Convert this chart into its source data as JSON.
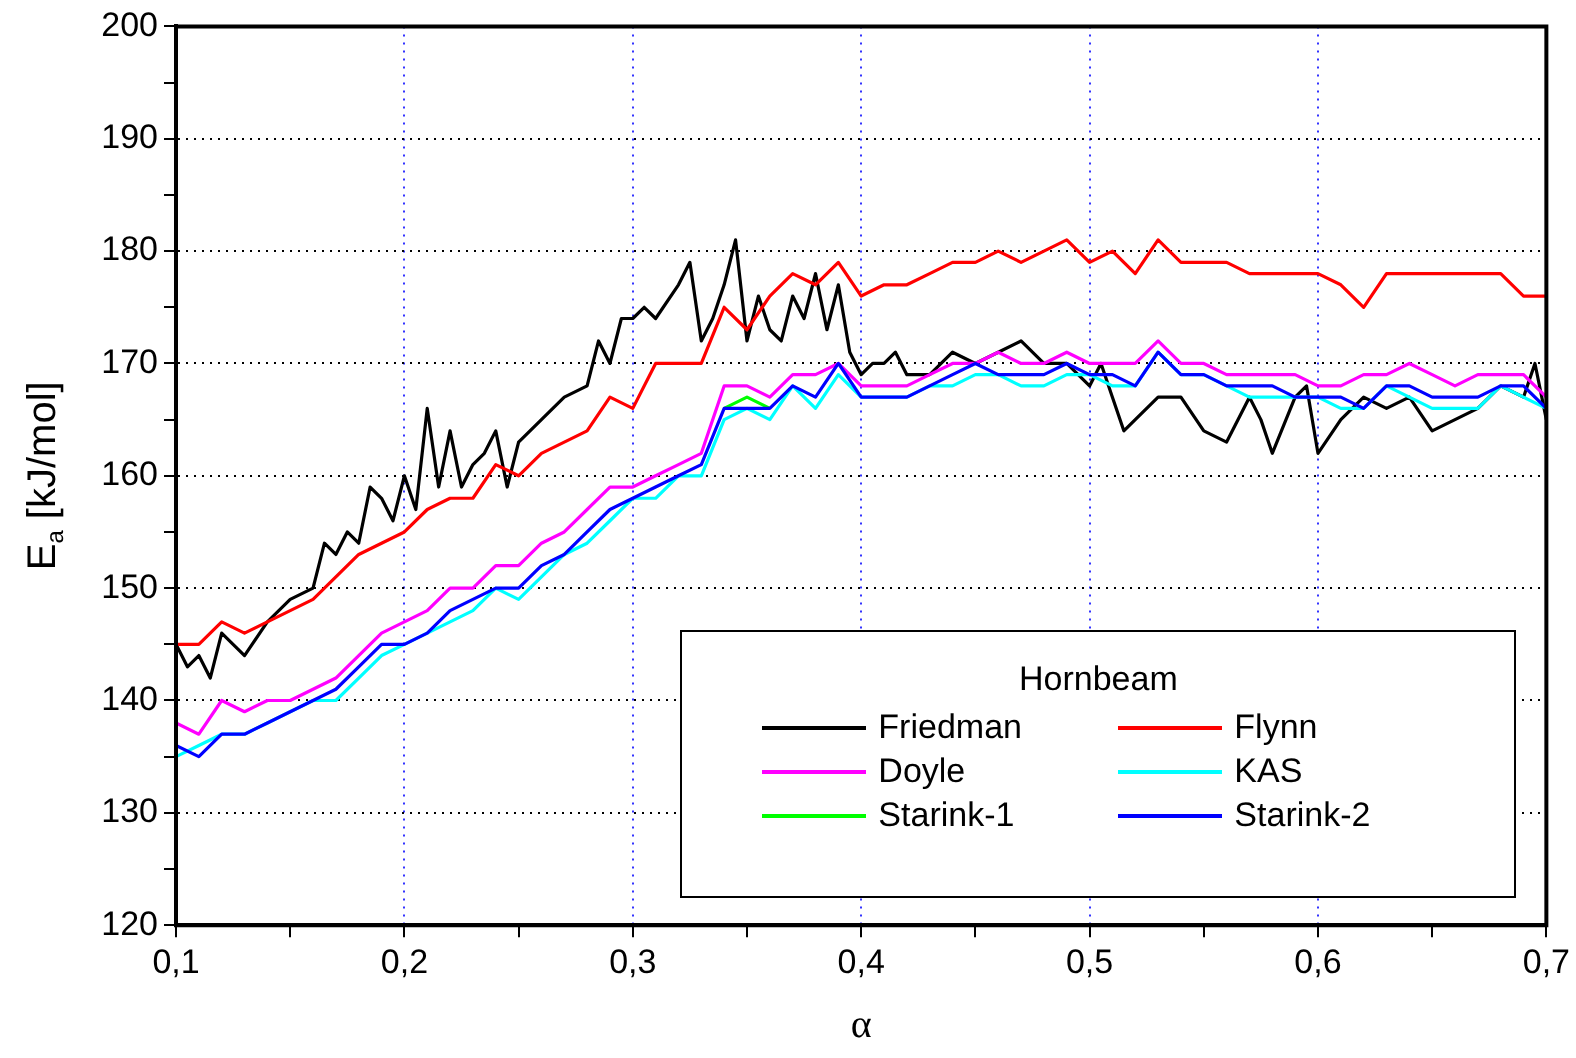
{
  "chart_data": {
    "type": "line",
    "xlabel": "α",
    "ylabel": "E$_{a}$ [kJ/mol]",
    "legend_title": "Hornbeam",
    "legend": "bottom right",
    "grid": true,
    "marker": "none",
    "line_style": "solid",
    "x": [
      0.1,
      0.11,
      0.12,
      0.13,
      0.14,
      0.15,
      0.16,
      0.17,
      0.18,
      0.19,
      0.2,
      0.21,
      0.22,
      0.23,
      0.24,
      0.25,
      0.26,
      0.27,
      0.28,
      0.29,
      0.3,
      0.31,
      0.32,
      0.33,
      0.34,
      0.35,
      0.36,
      0.37,
      0.38,
      0.39,
      0.4,
      0.41,
      0.42,
      0.43,
      0.44,
      0.45,
      0.46,
      0.47,
      0.48,
      0.49,
      0.5,
      0.51,
      0.52,
      0.53,
      0.54,
      0.55,
      0.56,
      0.57,
      0.58,
      0.59,
      0.6,
      0.61,
      0.62,
      0.63,
      0.64,
      0.65,
      0.66,
      0.67,
      0.68,
      0.69,
      0.7
    ],
    "xlim": [
      0.1,
      0.7
    ],
    "xticks": [
      {
        "value": 0.1,
        "label": "0,1"
      },
      {
        "value": 0.15,
        "label": null
      },
      {
        "value": 0.2,
        "label": "0,2"
      },
      {
        "value": 0.25,
        "label": null
      },
      {
        "value": 0.3,
        "label": "0,3"
      },
      {
        "value": 0.35,
        "label": null
      },
      {
        "value": 0.4,
        "label": "0,4"
      },
      {
        "value": 0.45,
        "label": null
      },
      {
        "value": 0.5,
        "label": "0,5"
      },
      {
        "value": 0.55,
        "label": null
      },
      {
        "value": 0.6,
        "label": "0,6"
      },
      {
        "value": 0.65,
        "label": null
      },
      {
        "value": 0.7,
        "label": "0,7"
      }
    ],
    "ylim": [
      120,
      200
    ],
    "yticks": [
      120,
      {
        "value": 125,
        "label": null
      },
      130,
      {
        "value": 135,
        "label": null
      },
      140,
      {
        "value": 145,
        "label": null
      },
      150,
      {
        "value": 155,
        "label": null
      },
      160,
      {
        "value": 165,
        "label": null
      },
      170,
      {
        "value": 175,
        "label": null
      },
      180,
      {
        "value": 185,
        "label": null
      },
      190,
      {
        "value": 195,
        "label": null
      },
      200
    ],
    "series": [
      {
        "name": "Friedman",
        "color": "#000000",
        "x": [
          0.1,
          0.105,
          0.11,
          0.115,
          0.12,
          0.13,
          0.14,
          0.15,
          0.16,
          0.165,
          0.17,
          0.175,
          0.18,
          0.185,
          0.19,
          0.195,
          0.2,
          0.205,
          0.21,
          0.215,
          0.22,
          0.225,
          0.23,
          0.235,
          0.24,
          0.245,
          0.25,
          0.26,
          0.27,
          0.28,
          0.285,
          0.29,
          0.295,
          0.3,
          0.305,
          0.31,
          0.32,
          0.325,
          0.33,
          0.335,
          0.34,
          0.345,
          0.35,
          0.355,
          0.36,
          0.365,
          0.37,
          0.375,
          0.38,
          0.385,
          0.39,
          0.395,
          0.4,
          0.405,
          0.41,
          0.415,
          0.42,
          0.43,
          0.44,
          0.45,
          0.46,
          0.47,
          0.48,
          0.49,
          0.5,
          0.505,
          0.51,
          0.515,
          0.52,
          0.53,
          0.54,
          0.55,
          0.56,
          0.57,
          0.575,
          0.58,
          0.59,
          0.595,
          0.6,
          0.61,
          0.62,
          0.63,
          0.64,
          0.65,
          0.66,
          0.67,
          0.68,
          0.69,
          0.695,
          0.7
        ],
        "values": [
          145,
          143,
          144,
          142,
          146,
          144,
          147,
          149,
          150,
          154,
          153,
          155,
          154,
          159,
          158,
          156,
          160,
          157,
          166,
          159,
          164,
          159,
          161,
          162,
          164,
          159,
          163,
          165,
          167,
          168,
          172,
          170,
          174,
          174,
          175,
          174,
          177,
          179,
          172,
          174,
          177,
          181,
          172,
          176,
          173,
          172,
          176,
          174,
          178,
          173,
          177,
          171,
          169,
          170,
          170,
          171,
          169,
          169,
          171,
          170,
          171,
          172,
          170,
          170,
          168,
          170,
          167,
          164,
          165,
          167,
          167,
          164,
          163,
          167,
          165,
          162,
          167,
          168,
          162,
          165,
          167,
          166,
          167,
          164,
          165,
          166,
          168,
          167,
          170,
          165
        ]
      },
      {
        "name": "Flynn",
        "color": "#ff0000",
        "values": [
          145,
          145,
          147,
          146,
          147,
          148,
          149,
          151,
          153,
          154,
          155,
          157,
          158,
          158,
          161,
          160,
          162,
          163,
          164,
          167,
          166,
          170,
          170,
          170,
          175,
          173,
          176,
          178,
          177,
          179,
          176,
          177,
          177,
          178,
          179,
          179,
          180,
          179,
          180,
          181,
          179,
          180,
          178,
          181,
          179,
          179,
          179,
          178,
          178,
          178,
          178,
          177,
          175,
          178,
          178,
          178,
          178,
          178,
          178,
          176,
          176
        ]
      },
      {
        "name": "Doyle",
        "color": "#ff00ff",
        "values": [
          138,
          137,
          140,
          139,
          140,
          140,
          141,
          142,
          144,
          146,
          147,
          148,
          150,
          150,
          152,
          152,
          154,
          155,
          157,
          159,
          159,
          160,
          161,
          162,
          168,
          168,
          167,
          169,
          169,
          170,
          168,
          168,
          168,
          169,
          170,
          170,
          171,
          170,
          170,
          171,
          170,
          170,
          170,
          172,
          170,
          170,
          169,
          169,
          169,
          169,
          168,
          168,
          169,
          169,
          170,
          169,
          168,
          169,
          169,
          169,
          167
        ]
      },
      {
        "name": "KAS",
        "color": "#00ffff",
        "values": [
          135,
          136,
          137,
          137,
          138,
          139,
          140,
          140,
          142,
          144,
          145,
          146,
          147,
          148,
          150,
          149,
          151,
          153,
          154,
          156,
          158,
          158,
          160,
          160,
          165,
          166,
          165,
          168,
          166,
          169,
          167,
          167,
          167,
          168,
          168,
          169,
          169,
          168,
          168,
          169,
          169,
          168,
          168,
          171,
          169,
          169,
          168,
          167,
          167,
          167,
          167,
          166,
          166,
          168,
          167,
          166,
          166,
          166,
          168,
          167,
          166
        ]
      },
      {
        "name": "Starink-1",
        "color": "#00ff00",
        "values": [
          null,
          null,
          null,
          null,
          null,
          null,
          null,
          null,
          null,
          null,
          null,
          null,
          null,
          null,
          null,
          null,
          null,
          null,
          null,
          null,
          null,
          null,
          null,
          null,
          166,
          167,
          166,
          null,
          null,
          null,
          null,
          null,
          null,
          null,
          null,
          null,
          null,
          null,
          null,
          null,
          null,
          null,
          null,
          null,
          null,
          null,
          null,
          null,
          null,
          null,
          null,
          null,
          null,
          null,
          null,
          null,
          null,
          null,
          null,
          null,
          null
        ]
      },
      {
        "name": "Starink-2",
        "color": "#0000ff",
        "values": [
          136,
          135,
          137,
          137,
          138,
          139,
          140,
          141,
          143,
          145,
          145,
          146,
          148,
          149,
          150,
          150,
          152,
          153,
          155,
          157,
          158,
          159,
          160,
          161,
          166,
          166,
          166,
          168,
          167,
          170,
          167,
          167,
          167,
          168,
          169,
          170,
          169,
          169,
          169,
          170,
          169,
          169,
          168,
          171,
          169,
          169,
          168,
          168,
          168,
          167,
          167,
          167,
          166,
          168,
          168,
          167,
          167,
          167,
          168,
          168,
          166
        ]
      }
    ]
  }
}
